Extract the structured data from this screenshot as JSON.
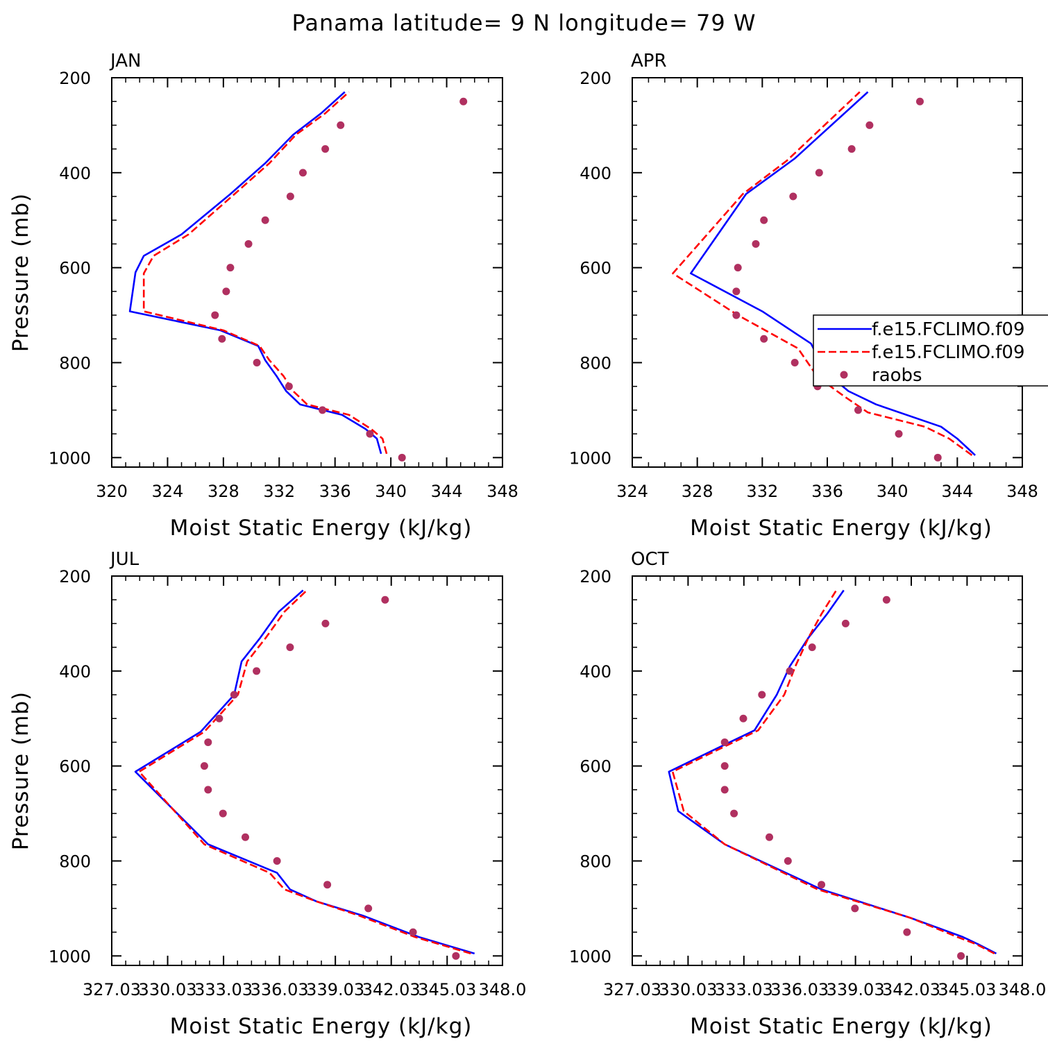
{
  "title": "Panama  latitude= 9 N longitude= 79 W",
  "legend": {
    "entries": [
      {
        "label": "f.e15.FCLIMO.f09",
        "color": "#0000ff",
        "style": "solid"
      },
      {
        "label": "f.e15.FCLIMO.f09",
        "color": "#ff0000",
        "style": "dashed"
      },
      {
        "label": "raobs",
        "color": "#b03060",
        "style": "marker"
      }
    ],
    "placement": "inside APR panel, right"
  },
  "chart_data": [
    {
      "type": "line",
      "panel": "JAN",
      "title": "JAN",
      "xlabel": "Moist Static Energy (kJ/kg)",
      "ylabel": "Pressure (mb)",
      "xlim": [
        320,
        348
      ],
      "ylim": [
        1020,
        200
      ],
      "xticks": [
        320,
        324,
        328,
        332,
        336,
        340,
        344,
        348
      ],
      "xtick_labels": [
        "320",
        "324",
        "328",
        "332",
        "336",
        "340",
        "344",
        "348"
      ],
      "yticks": [
        200,
        400,
        600,
        800,
        1000
      ],
      "ytick_labels": [
        "200",
        "400",
        "600",
        "800",
        "1000"
      ],
      "series": [
        {
          "style": "solid",
          "color": "#0000ff",
          "x": [
            339.3,
            339.0,
            338.2,
            336.5,
            333.5,
            332.5,
            331.8,
            331.0,
            330.5,
            327.8,
            321.3,
            321.7,
            322.3,
            325.0,
            328.5,
            331.0,
            333.0,
            335.0,
            336.7
          ],
          "y": [
            992,
            960,
            940,
            910,
            888,
            860,
            828,
            795,
            765,
            732,
            692,
            610,
            575,
            530,
            445,
            380,
            320,
            275,
            230
          ]
        },
        {
          "style": "dashed",
          "color": "#ff0000",
          "x": [
            339.7,
            339.4,
            338.6,
            337.0,
            334.0,
            333.0,
            332.3,
            331.3,
            330.6,
            328.0,
            322.3,
            322.3,
            323.0,
            325.5,
            328.8,
            331.3,
            333.2,
            335.3,
            337.0
          ],
          "y": [
            992,
            960,
            940,
            910,
            888,
            860,
            828,
            795,
            765,
            732,
            692,
            612,
            575,
            530,
            445,
            380,
            320,
            275,
            230
          ]
        },
        {
          "style": "marker",
          "color": "#b03060",
          "x": [
            340.8,
            338.5,
            335.1,
            332.7,
            330.4,
            327.9,
            327.4,
            328.2,
            328.5,
            329.8,
            331.0,
            332.8,
            333.7,
            335.3,
            336.4,
            345.2
          ],
          "y": [
            1000,
            950,
            900,
            850,
            800,
            750,
            700,
            650,
            600,
            550,
            500,
            450,
            400,
            350,
            300,
            250
          ]
        }
      ]
    },
    {
      "type": "line",
      "panel": "APR",
      "title": "APR",
      "xlabel": "Moist Static Energy (kJ/kg)",
      "ylabel": "",
      "xlim": [
        324,
        348
      ],
      "ylim": [
        1020,
        200
      ],
      "xticks": [
        324,
        328,
        332,
        336,
        340,
        344,
        348
      ],
      "xtick_labels": [
        "324",
        "328",
        "332",
        "336",
        "340",
        "344",
        "348"
      ],
      "yticks": [
        200,
        400,
        600,
        800,
        1000
      ],
      "ytick_labels": [
        "200",
        "400",
        "600",
        "800",
        "1000"
      ],
      "series": [
        {
          "style": "solid",
          "color": "#0000ff",
          "x": [
            345.1,
            344.0,
            343.0,
            339.0,
            337.3,
            335.9,
            335.0,
            332.0,
            327.6,
            331.0,
            334.0,
            338.5
          ],
          "y": [
            995,
            960,
            935,
            888,
            860,
            820,
            760,
            692,
            612,
            445,
            370,
            230
          ]
        },
        {
          "style": "dashed",
          "color": "#ff0000",
          "x": [
            344.9,
            343.5,
            342.0,
            338.5,
            337.0,
            335.4,
            334.2,
            330.5,
            326.5,
            330.8,
            333.5,
            338.0
          ],
          "y": [
            995,
            960,
            935,
            905,
            870,
            830,
            770,
            700,
            612,
            445,
            375,
            230
          ]
        },
        {
          "style": "marker",
          "color": "#b03060",
          "x": [
            342.8,
            340.4,
            337.9,
            335.4,
            334.0,
            332.1,
            330.4,
            330.4,
            330.5,
            331.6,
            332.1,
            333.9,
            335.5,
            337.5,
            338.6,
            341.7
          ],
          "y": [
            1000,
            950,
            900,
            850,
            800,
            750,
            700,
            650,
            600,
            550,
            500,
            450,
            400,
            350,
            300,
            250
          ]
        }
      ]
    },
    {
      "type": "line",
      "panel": "JUL",
      "title": "JUL",
      "xlabel": "Moist Static Energy (kJ/kg)",
      "ylabel": "Pressure (mb)",
      "xlim": [
        327.03,
        348.0
      ],
      "ylim": [
        1020,
        200
      ],
      "xticks": [
        327.03,
        330.03,
        333.03,
        336.03,
        339.03,
        342.03,
        345.03,
        348.0
      ],
      "xtick_labels": [
        "327.03",
        "330.03",
        "333.03",
        "336.03",
        "339.03",
        "342.03",
        "345.03",
        "348.0"
      ],
      "yticks": [
        200,
        400,
        600,
        800,
        1000
      ],
      "ytick_labels": [
        "200",
        "400",
        "600",
        "800",
        "1000"
      ],
      "series": [
        {
          "style": "solid",
          "color": "#0000ff",
          "x": [
            346.5,
            343.5,
            340.5,
            338.0,
            336.6,
            335.9,
            332.2,
            328.3,
            331.8,
            333.6,
            334.0,
            335.0,
            336.0,
            337.3
          ],
          "y": [
            995,
            960,
            915,
            885,
            860,
            825,
            765,
            612,
            528,
            450,
            380,
            330,
            275,
            230
          ]
        },
        {
          "style": "dashed",
          "color": "#ff0000",
          "x": [
            346.3,
            343.3,
            340.3,
            338.0,
            336.3,
            335.5,
            332.0,
            328.5,
            332.0,
            333.8,
            334.3,
            335.3,
            336.3,
            337.5
          ],
          "y": [
            995,
            960,
            915,
            885,
            860,
            825,
            765,
            612,
            528,
            450,
            380,
            330,
            275,
            230
          ]
        },
        {
          "style": "marker",
          "color": "#b03060",
          "x": [
            345.5,
            343.2,
            340.8,
            338.6,
            335.9,
            334.2,
            333.0,
            332.2,
            332.0,
            332.2,
            332.8,
            333.6,
            334.8,
            336.6,
            338.5,
            341.7
          ],
          "y": [
            1000,
            950,
            900,
            850,
            800,
            750,
            700,
            650,
            600,
            550,
            500,
            450,
            400,
            350,
            300,
            250
          ]
        }
      ]
    },
    {
      "type": "line",
      "panel": "OCT",
      "title": "OCT",
      "xlabel": "Moist Static Energy (kJ/kg)",
      "ylabel": "",
      "xlim": [
        327.03,
        348.0
      ],
      "ylim": [
        1020,
        200
      ],
      "xticks": [
        327.03,
        330.03,
        333.03,
        336.03,
        339.03,
        342.03,
        345.03,
        348.0
      ],
      "xtick_labels": [
        "327.03",
        "330.03",
        "333.03",
        "336.03",
        "339.03",
        "342.03",
        "345.03",
        "348.0"
      ],
      "yticks": [
        200,
        400,
        600,
        800,
        1000
      ],
      "ytick_labels": [
        "200",
        "400",
        "600",
        "800",
        "1000"
      ],
      "series": [
        {
          "style": "solid",
          "color": "#0000ff",
          "x": [
            346.6,
            345.6,
            344.8,
            342.0,
            337.2,
            332.0,
            329.5,
            329.0,
            332.0,
            333.6,
            334.8,
            335.5,
            336.5,
            337.5,
            338.4
          ],
          "y": [
            995,
            975,
            960,
            920,
            860,
            765,
            695,
            612,
            555,
            525,
            450,
            390,
            330,
            280,
            230
          ]
        },
        {
          "style": "dashed",
          "color": "#ff0000",
          "x": [
            346.5,
            345.5,
            344.5,
            342.0,
            337.0,
            332.0,
            329.8,
            329.2,
            332.2,
            333.8,
            335.2,
            335.8,
            336.5,
            337.2,
            338.0
          ],
          "y": [
            995,
            975,
            960,
            920,
            860,
            765,
            695,
            612,
            555,
            525,
            450,
            390,
            330,
            280,
            230
          ]
        },
        {
          "style": "marker",
          "color": "#b03060",
          "x": [
            344.7,
            341.8,
            339.0,
            337.2,
            335.4,
            334.4,
            332.5,
            332.0,
            332.0,
            332.0,
            333.0,
            334.0,
            335.5,
            336.7,
            338.5,
            340.7
          ],
          "y": [
            1000,
            950,
            900,
            850,
            800,
            750,
            700,
            650,
            600,
            550,
            500,
            450,
            400,
            350,
            300,
            250
          ]
        }
      ]
    }
  ]
}
